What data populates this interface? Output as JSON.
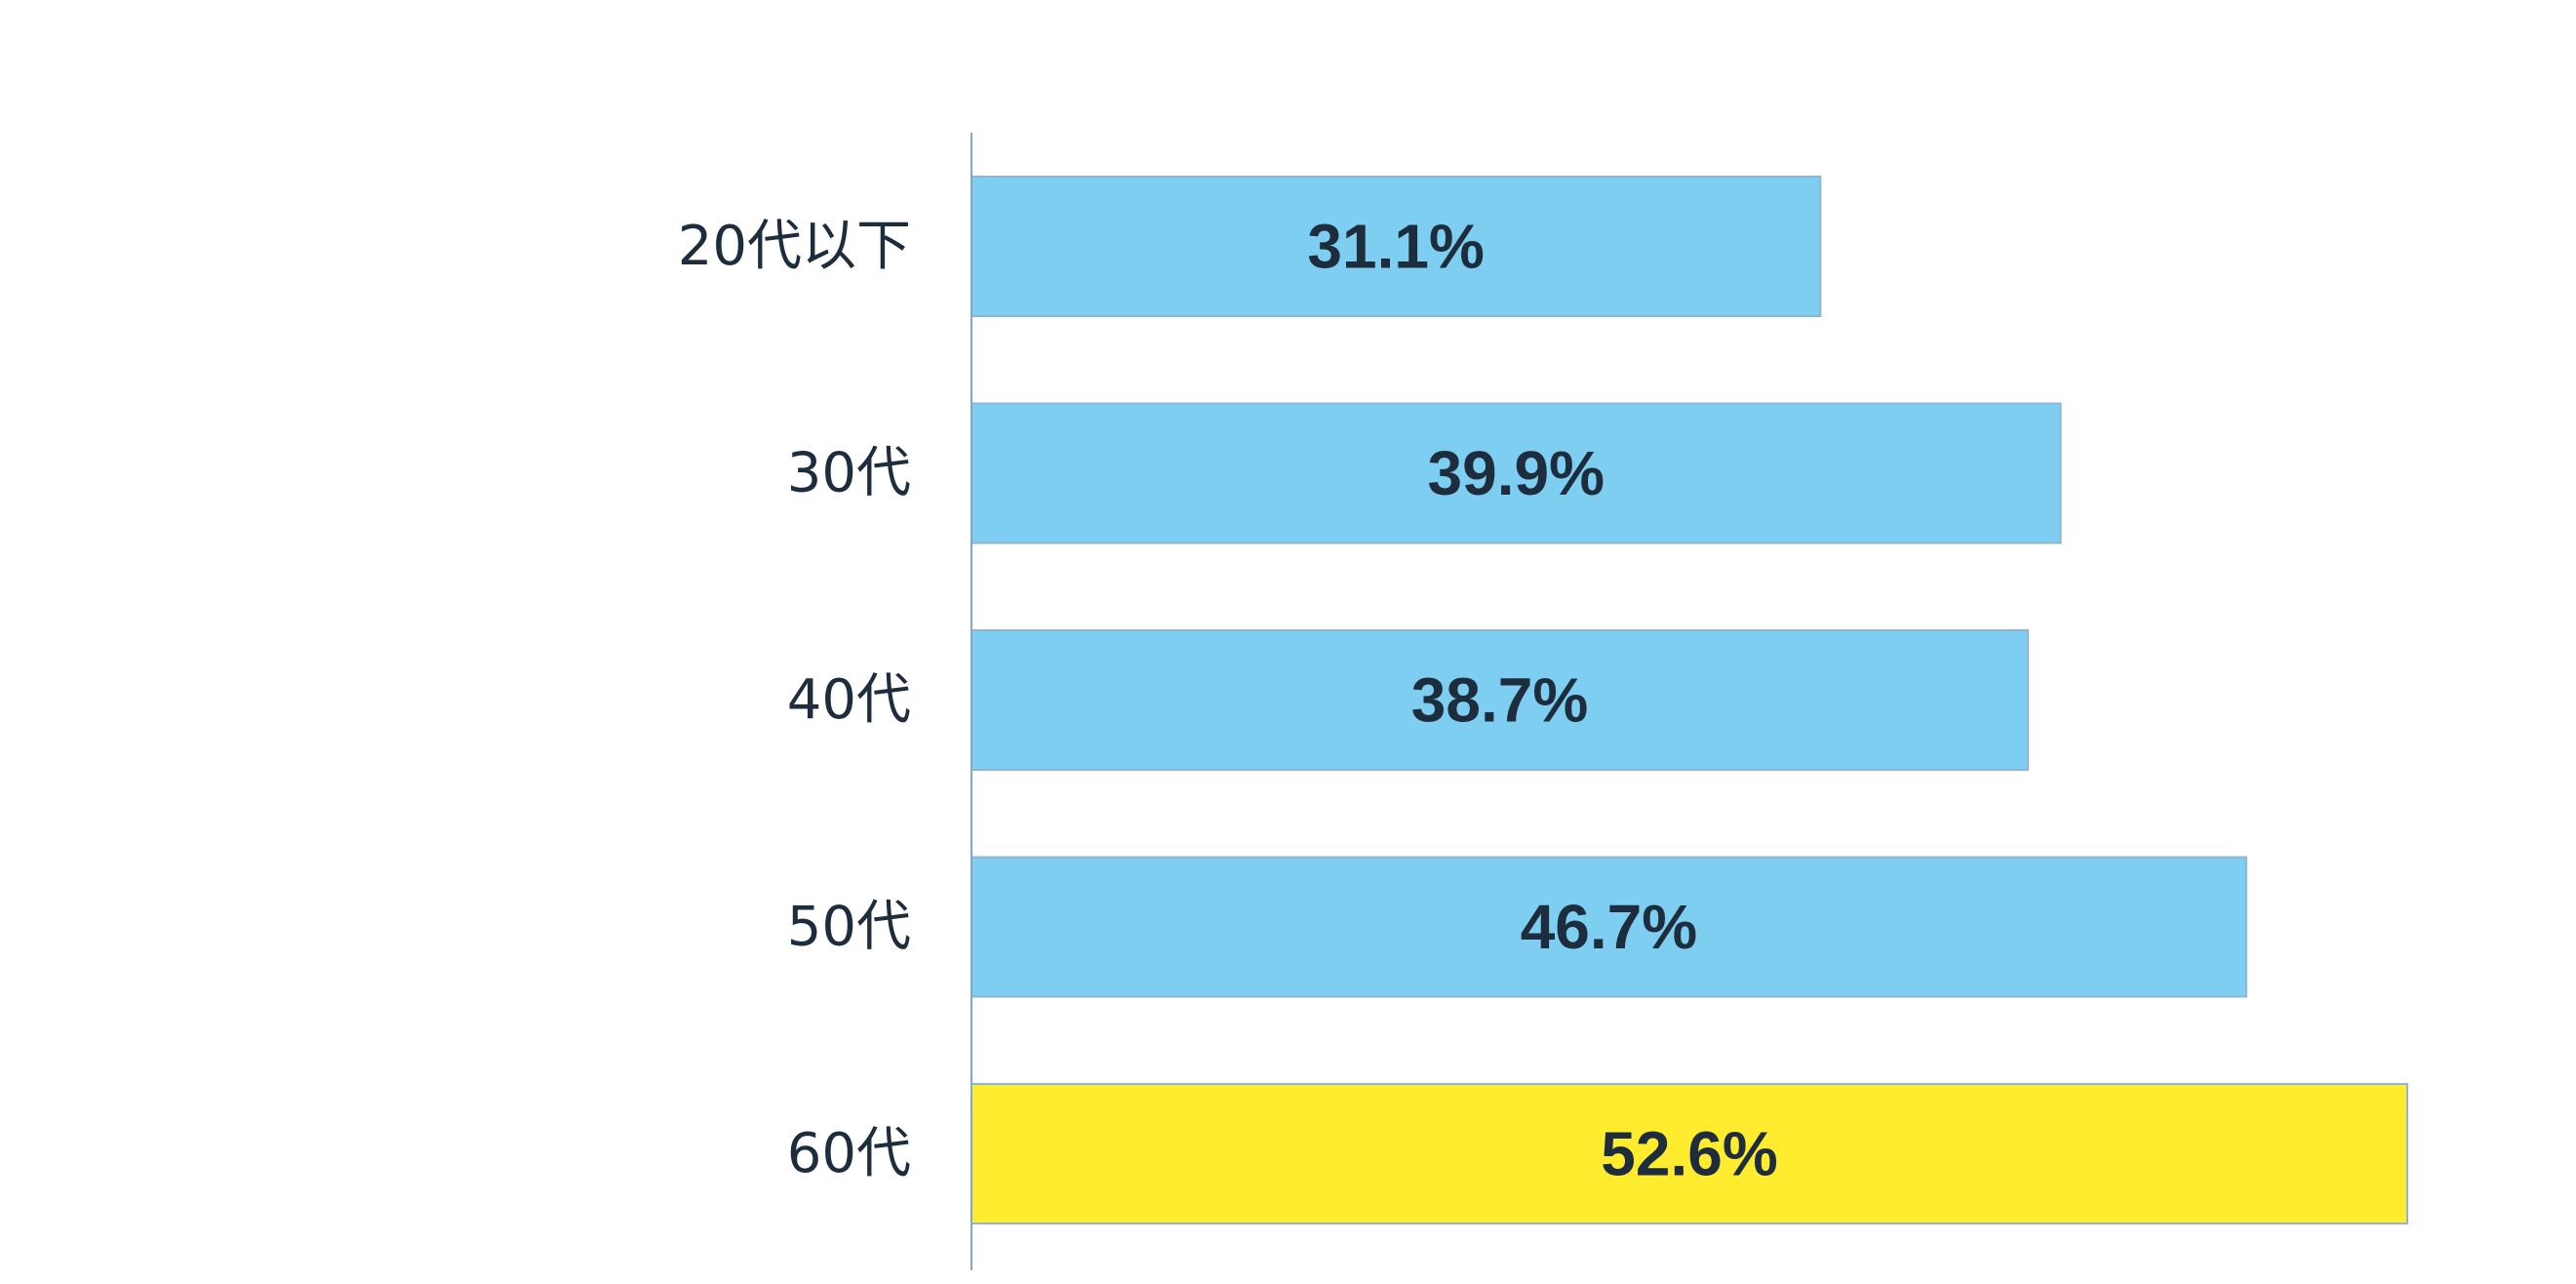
{
  "chart_data": {
    "type": "bar",
    "orientation": "horizontal",
    "categories": [
      "20代以下",
      "30代",
      "40代",
      "50代",
      "60代"
    ],
    "values": [
      31.1,
      39.9,
      38.7,
      46.7,
      52.6
    ],
    "value_labels": [
      "31.1%",
      "39.9%",
      "38.7%",
      "46.7%",
      "52.6%"
    ],
    "unit": "%",
    "xlim": [
      0,
      52.6
    ],
    "grid": false,
    "legend": "none",
    "colors": {
      "default": "#7dcef0",
      "highlight": "#ffec2e",
      "text": "#1e2d3d",
      "axis": "#7fa8cf"
    },
    "highlight_index": 4
  }
}
